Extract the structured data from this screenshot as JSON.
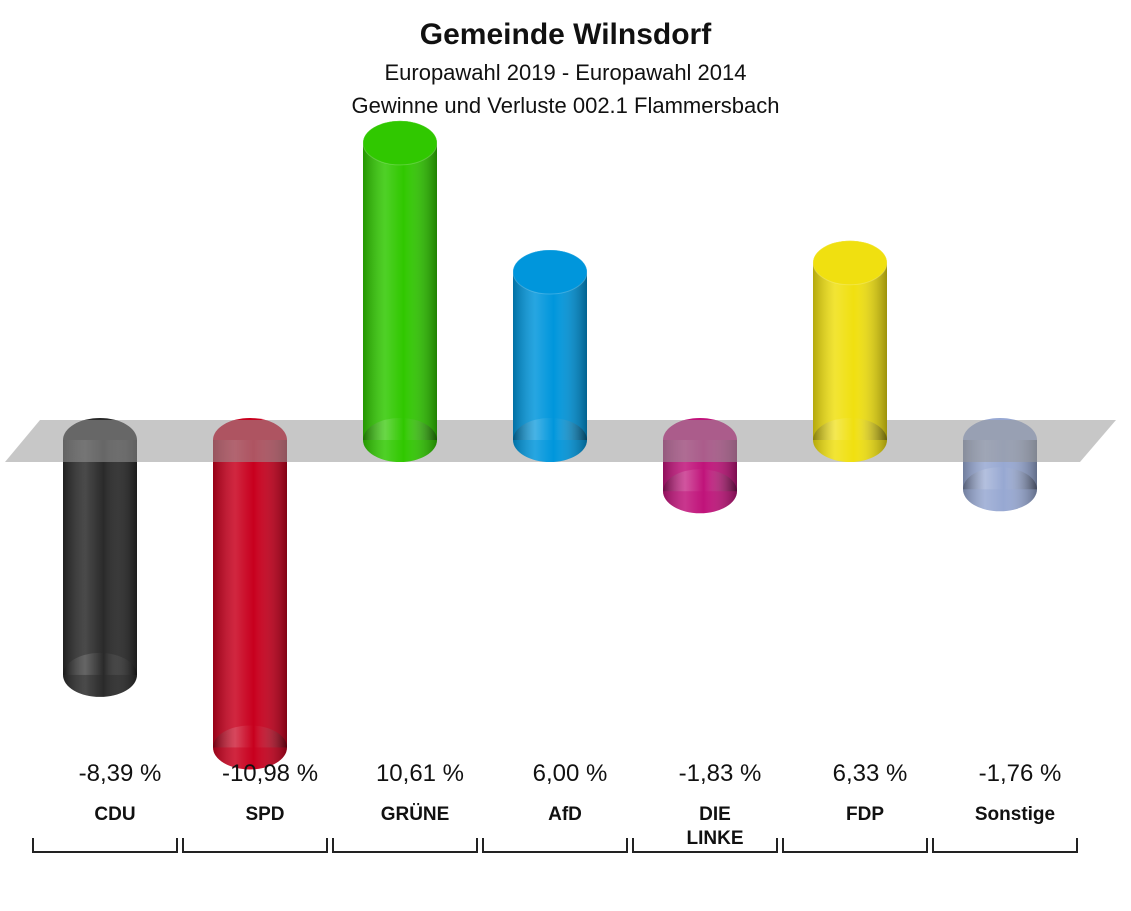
{
  "chart_data": {
    "type": "bar",
    "title": "Gemeinde Wilnsdorf",
    "subtitle": [
      "Europawahl 2019 - Europawahl 2014",
      "Gewinne und Verluste 002.1 Flammersbach"
    ],
    "categories": [
      "CDU",
      "SPD",
      "GRÜNE",
      "AfD",
      "DIE LINKE",
      "FDP",
      "Sonstige"
    ],
    "values": [
      -8.39,
      -10.98,
      10.61,
      6.0,
      -1.83,
      6.33,
      -1.76
    ],
    "value_labels": [
      "-8,39 %",
      "-10,98 %",
      "10,61 %",
      "6,00 %",
      "-1,83 %",
      "6,33 %",
      "-1,76 %"
    ],
    "colors": [
      "#2a2a2a",
      "#c8001e",
      "#30c800",
      "#0096dc",
      "#c0137a",
      "#f0e010",
      "#97a8d2"
    ]
  }
}
